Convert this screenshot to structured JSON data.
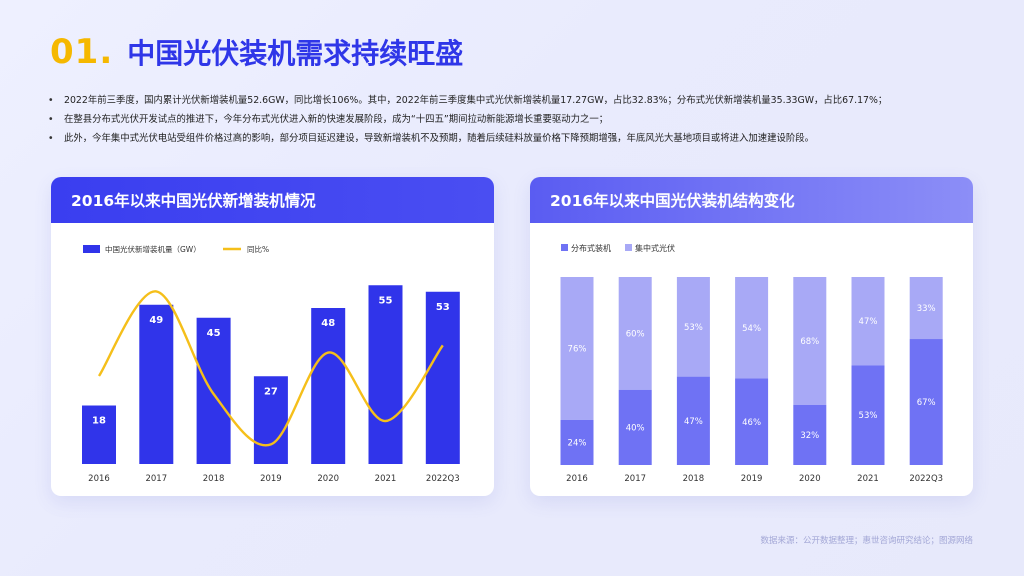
{
  "header": {
    "number": "01.",
    "title": "中国光伏装机需求持续旺盛"
  },
  "bullets": [
    "2022年前三季度，国内累计光伏新增装机量52.6GW，同比增长106%。其中，2022年前三季度集中式光伏新增装机量17.27GW，占比32.83%；分布式光伏新增装机量35.33GW，占比67.17%；",
    "在整县分布式光伏开发试点的推进下，今年分布式光伏进入新的快速发展阶段，成为“十四五”期间拉动新能源增长重要驱动力之一；",
    "此外，今年集中式光伏电站受组件价格过高的影响，部分项目延迟建设，导致新增装机不及预期，随着后续硅料放量价格下降预期增强，年底风光大基地项目或将进入加速建设阶段。"
  ],
  "source": "数据来源：公开数据整理；惠世咨询研究结论；图源网络",
  "colors": {
    "bar_blue": "#3034ea",
    "line_yellow": "#f5bf1a",
    "distributed": "#6f72f4",
    "centralized": "#a8a9f6"
  },
  "chart_data": [
    {
      "type": "bar",
      "title": "2016年以来中国光伏新增装机情况",
      "categories": [
        "2016",
        "2017",
        "2018",
        "2019",
        "2020",
        "2021",
        "2022Q3"
      ],
      "series": [
        {
          "name": "中国光伏新增装机量（GW）",
          "type": "bar",
          "values": [
            18,
            49,
            45,
            27,
            48,
            55,
            53
          ]
        },
        {
          "name": "同比%",
          "type": "line",
          "smooth": true,
          "values": [
            0.45,
            0.92,
            0.35,
            0.07,
            0.58,
            0.2,
            0.62
          ]
        }
      ],
      "ylim": [
        0,
        60
      ],
      "legend_position": "top-left",
      "grid": false
    },
    {
      "type": "bar",
      "stacked": true,
      "title": "2016年以来中国光伏装机结构变化",
      "categories": [
        "2016",
        "2017",
        "2018",
        "2019",
        "2020",
        "2021",
        "2022Q3"
      ],
      "series": [
        {
          "name": "分布式装机",
          "values": [
            24,
            40,
            47,
            46,
            32,
            53,
            67
          ],
          "labels": [
            "24%",
            "40%",
            "47%",
            "46%",
            "32%",
            "53%",
            "67%"
          ]
        },
        {
          "name": "集中式光伏",
          "values": [
            76,
            60,
            53,
            54,
            68,
            47,
            33
          ],
          "labels": [
            "76%",
            "60%",
            "53%",
            "54%",
            "68%",
            "47%",
            "33%"
          ]
        }
      ],
      "ylim": [
        0,
        100
      ],
      "legend_position": "top-left",
      "grid": false
    }
  ]
}
